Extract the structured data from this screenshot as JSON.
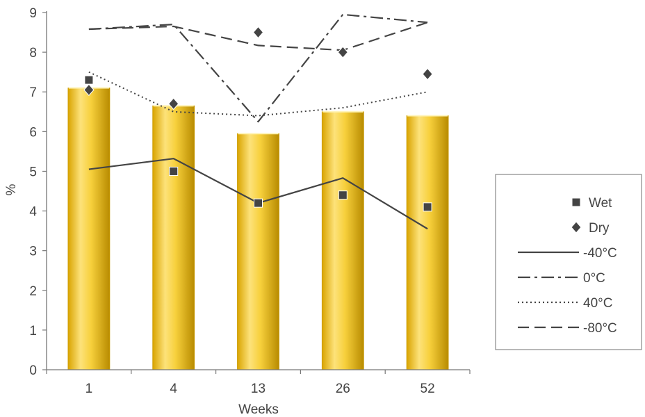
{
  "chart_data": {
    "type": "bar",
    "title": "",
    "xlabel": "Weeks",
    "ylabel": "%",
    "ylim": [
      0,
      9
    ],
    "yticks": [
      "0",
      "1",
      "2",
      "3",
      "4",
      "5",
      "6",
      "7",
      "8",
      "9"
    ],
    "categories": [
      "1",
      "4",
      "13",
      "26",
      "52"
    ],
    "grid": false,
    "legend_position": "right",
    "bars": {
      "values": [
        7.1,
        6.65,
        5.95,
        6.5,
        6.4
      ],
      "color": "#f2c624"
    },
    "markers": [
      {
        "name": "Wet",
        "shape": "square",
        "values": [
          7.3,
          5.0,
          4.2,
          4.4,
          4.1
        ]
      },
      {
        "name": "Dry",
        "shape": "diamond",
        "values": [
          7.05,
          6.7,
          8.5,
          8.0,
          7.45
        ]
      }
    ],
    "lines": [
      {
        "name": "-40°C",
        "dash": "solid",
        "values": [
          5.05,
          5.32,
          4.2,
          4.83,
          3.55
        ]
      },
      {
        "name": "0°C",
        "dash": "dashdot",
        "values": [
          8.58,
          8.7,
          6.25,
          8.95,
          8.75
        ]
      },
      {
        "name": "40°C",
        "dash": "dotted",
        "values": [
          7.5,
          6.5,
          6.4,
          6.6,
          7.0
        ]
      },
      {
        "name": "-80°C",
        "dash": "dashed",
        "values": [
          8.58,
          8.65,
          8.17,
          8.05,
          8.75
        ]
      }
    ],
    "colors": {
      "line": "#444444",
      "marker": "#444444",
      "axis": "#777777"
    }
  }
}
